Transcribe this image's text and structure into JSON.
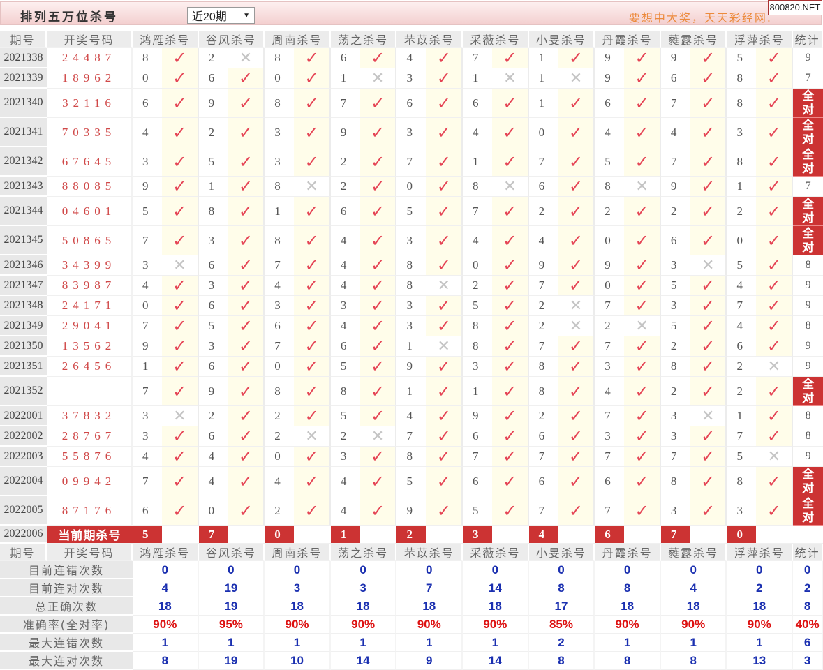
{
  "header": {
    "title": "排列五万位杀号",
    "period_select": "近20期",
    "slogan": "要想中大奖，天天彩经网.",
    "badge": "800820.NET"
  },
  "colors": {
    "accent": "#cc3333",
    "check": "#e54455",
    "cross": "#c4c4c4",
    "stat_blue": "#1a2fb0",
    "pct_red": "#dd1111"
  },
  "icons": {
    "correct": "check-icon",
    "wrong": "cross-icon"
  },
  "columns": {
    "period": "期号",
    "draw": "开奖号码",
    "experts": [
      "鸿雁杀号",
      "谷风杀号",
      "周南杀号",
      "荡之杀号",
      "芣苡杀号",
      "采薇杀号",
      "小旻杀号",
      "丹霞杀号",
      "蕤露杀号",
      "浮萍杀号"
    ],
    "stat": "统计"
  },
  "rows": [
    {
      "period": "2021338",
      "draw": "24487",
      "picks": [
        [
          "8",
          1
        ],
        [
          "2",
          0
        ],
        [
          "8",
          1
        ],
        [
          "6",
          1
        ],
        [
          "4",
          1
        ],
        [
          "7",
          1
        ],
        [
          "1",
          1
        ],
        [
          "9",
          1
        ],
        [
          "9",
          1
        ],
        [
          "5",
          1
        ]
      ],
      "stat": "9"
    },
    {
      "period": "2021339",
      "draw": "18962",
      "picks": [
        [
          "0",
          1
        ],
        [
          "6",
          1
        ],
        [
          "0",
          1
        ],
        [
          "1",
          0
        ],
        [
          "3",
          1
        ],
        [
          "1",
          0
        ],
        [
          "1",
          0
        ],
        [
          "9",
          1
        ],
        [
          "6",
          1
        ],
        [
          "8",
          1
        ]
      ],
      "stat": "7"
    },
    {
      "period": "2021340",
      "draw": "32116",
      "picks": [
        [
          "6",
          1
        ],
        [
          "9",
          1
        ],
        [
          "8",
          1
        ],
        [
          "7",
          1
        ],
        [
          "6",
          1
        ],
        [
          "6",
          1
        ],
        [
          "1",
          1
        ],
        [
          "6",
          1
        ],
        [
          "7",
          1
        ],
        [
          "8",
          1
        ]
      ],
      "stat": "全对"
    },
    {
      "period": "2021341",
      "draw": "70335",
      "picks": [
        [
          "4",
          1
        ],
        [
          "2",
          1
        ],
        [
          "3",
          1
        ],
        [
          "9",
          1
        ],
        [
          "3",
          1
        ],
        [
          "4",
          1
        ],
        [
          "0",
          1
        ],
        [
          "4",
          1
        ],
        [
          "4",
          1
        ],
        [
          "3",
          1
        ]
      ],
      "stat": "全对"
    },
    {
      "period": "2021342",
      "draw": "67645",
      "picks": [
        [
          "3",
          1
        ],
        [
          "5",
          1
        ],
        [
          "3",
          1
        ],
        [
          "2",
          1
        ],
        [
          "7",
          1
        ],
        [
          "1",
          1
        ],
        [
          "7",
          1
        ],
        [
          "5",
          1
        ],
        [
          "7",
          1
        ],
        [
          "8",
          1
        ]
      ],
      "stat": "全对"
    },
    {
      "period": "2021343",
      "draw": "88085",
      "picks": [
        [
          "9",
          1
        ],
        [
          "1",
          1
        ],
        [
          "8",
          0
        ],
        [
          "2",
          1
        ],
        [
          "0",
          1
        ],
        [
          "8",
          0
        ],
        [
          "6",
          1
        ],
        [
          "8",
          0
        ],
        [
          "9",
          1
        ],
        [
          "1",
          1
        ]
      ],
      "stat": "7"
    },
    {
      "period": "2021344",
      "draw": "04601",
      "picks": [
        [
          "5",
          1
        ],
        [
          "8",
          1
        ],
        [
          "1",
          1
        ],
        [
          "6",
          1
        ],
        [
          "5",
          1
        ],
        [
          "7",
          1
        ],
        [
          "2",
          1
        ],
        [
          "2",
          1
        ],
        [
          "2",
          1
        ],
        [
          "2",
          1
        ]
      ],
      "stat": "全对"
    },
    {
      "period": "2021345",
      "draw": "50865",
      "picks": [
        [
          "7",
          1
        ],
        [
          "3",
          1
        ],
        [
          "8",
          1
        ],
        [
          "4",
          1
        ],
        [
          "3",
          1
        ],
        [
          "4",
          1
        ],
        [
          "4",
          1
        ],
        [
          "0",
          1
        ],
        [
          "6",
          1
        ],
        [
          "0",
          1
        ]
      ],
      "stat": "全对"
    },
    {
      "period": "2021346",
      "draw": "34399",
      "picks": [
        [
          "3",
          0
        ],
        [
          "6",
          1
        ],
        [
          "7",
          1
        ],
        [
          "4",
          1
        ],
        [
          "8",
          1
        ],
        [
          "0",
          1
        ],
        [
          "9",
          1
        ],
        [
          "9",
          1
        ],
        [
          "3",
          0
        ],
        [
          "5",
          1
        ]
      ],
      "stat": "8"
    },
    {
      "period": "2021347",
      "draw": "83987",
      "picks": [
        [
          "4",
          1
        ],
        [
          "3",
          1
        ],
        [
          "4",
          1
        ],
        [
          "4",
          1
        ],
        [
          "8",
          0
        ],
        [
          "2",
          1
        ],
        [
          "7",
          1
        ],
        [
          "0",
          1
        ],
        [
          "5",
          1
        ],
        [
          "4",
          1
        ]
      ],
      "stat": "9"
    },
    {
      "period": "2021348",
      "draw": "24171",
      "picks": [
        [
          "0",
          1
        ],
        [
          "6",
          1
        ],
        [
          "3",
          1
        ],
        [
          "3",
          1
        ],
        [
          "3",
          1
        ],
        [
          "5",
          1
        ],
        [
          "2",
          0
        ],
        [
          "7",
          1
        ],
        [
          "3",
          1
        ],
        [
          "7",
          1
        ]
      ],
      "stat": "9"
    },
    {
      "period": "2021349",
      "draw": "29041",
      "picks": [
        [
          "7",
          1
        ],
        [
          "5",
          1
        ],
        [
          "6",
          1
        ],
        [
          "4",
          1
        ],
        [
          "3",
          1
        ],
        [
          "8",
          1
        ],
        [
          "2",
          0
        ],
        [
          "2",
          0
        ],
        [
          "5",
          1
        ],
        [
          "4",
          1
        ]
      ],
      "stat": "8"
    },
    {
      "period": "2021350",
      "draw": "13562",
      "picks": [
        [
          "9",
          1
        ],
        [
          "3",
          1
        ],
        [
          "7",
          1
        ],
        [
          "6",
          1
        ],
        [
          "1",
          0
        ],
        [
          "8",
          1
        ],
        [
          "7",
          1
        ],
        [
          "7",
          1
        ],
        [
          "2",
          1
        ],
        [
          "6",
          1
        ]
      ],
      "stat": "9"
    },
    {
      "period": "2021351",
      "draw": "26456",
      "picks": [
        [
          "1",
          1
        ],
        [
          "6",
          1
        ],
        [
          "0",
          1
        ],
        [
          "5",
          1
        ],
        [
          "9",
          1
        ],
        [
          "3",
          1
        ],
        [
          "8",
          1
        ],
        [
          "3",
          1
        ],
        [
          "8",
          1
        ],
        [
          "2",
          0
        ]
      ],
      "stat": "9"
    },
    {
      "period": "2021352",
      "draw": "",
      "picks": [
        [
          "7",
          1
        ],
        [
          "9",
          1
        ],
        [
          "8",
          1
        ],
        [
          "8",
          1
        ],
        [
          "1",
          1
        ],
        [
          "1",
          1
        ],
        [
          "8",
          1
        ],
        [
          "4",
          1
        ],
        [
          "2",
          1
        ],
        [
          "2",
          1
        ]
      ],
      "stat": "全对"
    },
    {
      "period": "2022001",
      "draw": "37832",
      "picks": [
        [
          "3",
          0
        ],
        [
          "2",
          1
        ],
        [
          "2",
          1
        ],
        [
          "5",
          1
        ],
        [
          "4",
          1
        ],
        [
          "9",
          1
        ],
        [
          "2",
          1
        ],
        [
          "7",
          1
        ],
        [
          "3",
          0
        ],
        [
          "1",
          1
        ]
      ],
      "stat": "8"
    },
    {
      "period": "2022002",
      "draw": "28767",
      "picks": [
        [
          "3",
          1
        ],
        [
          "6",
          1
        ],
        [
          "2",
          0
        ],
        [
          "2",
          0
        ],
        [
          "7",
          1
        ],
        [
          "6",
          1
        ],
        [
          "6",
          1
        ],
        [
          "3",
          1
        ],
        [
          "3",
          1
        ],
        [
          "7",
          1
        ]
      ],
      "stat": "8"
    },
    {
      "period": "2022003",
      "draw": "55876",
      "picks": [
        [
          "4",
          1
        ],
        [
          "4",
          1
        ],
        [
          "0",
          1
        ],
        [
          "3",
          1
        ],
        [
          "8",
          1
        ],
        [
          "7",
          1
        ],
        [
          "7",
          1
        ],
        [
          "7",
          1
        ],
        [
          "7",
          1
        ],
        [
          "5",
          0
        ]
      ],
      "stat": "9"
    },
    {
      "period": "2022004",
      "draw": "09942",
      "picks": [
        [
          "7",
          1
        ],
        [
          "4",
          1
        ],
        [
          "4",
          1
        ],
        [
          "4",
          1
        ],
        [
          "5",
          1
        ],
        [
          "6",
          1
        ],
        [
          "6",
          1
        ],
        [
          "6",
          1
        ],
        [
          "8",
          1
        ],
        [
          "8",
          1
        ]
      ],
      "stat": "全对"
    },
    {
      "period": "2022005",
      "draw": "87176",
      "picks": [
        [
          "6",
          1
        ],
        [
          "0",
          1
        ],
        [
          "2",
          1
        ],
        [
          "4",
          1
        ],
        [
          "9",
          1
        ],
        [
          "5",
          1
        ],
        [
          "7",
          1
        ],
        [
          "7",
          1
        ],
        [
          "3",
          1
        ],
        [
          "3",
          1
        ]
      ],
      "stat": "全对"
    }
  ],
  "current": {
    "period": "2022006",
    "label": "当前期杀号",
    "picks": [
      "5",
      "7",
      "0",
      "1",
      "2",
      "3",
      "4",
      "6",
      "7",
      "0"
    ]
  },
  "stats": [
    {
      "label": "目前连错次数",
      "values": [
        "0",
        "0",
        "0",
        "0",
        "0",
        "0",
        "0",
        "0",
        "0",
        "0"
      ],
      "total": "0"
    },
    {
      "label": "目前连对次数",
      "values": [
        "4",
        "19",
        "3",
        "3",
        "7",
        "14",
        "8",
        "8",
        "4",
        "2"
      ],
      "total": "2"
    },
    {
      "label": "总正确次数",
      "values": [
        "18",
        "19",
        "18",
        "18",
        "18",
        "18",
        "17",
        "18",
        "18",
        "18"
      ],
      "total": "8"
    },
    {
      "label": "准确率(全对率)",
      "values": [
        "90%",
        "95%",
        "90%",
        "90%",
        "90%",
        "90%",
        "85%",
        "90%",
        "90%",
        "90%"
      ],
      "total": "40%",
      "highlight": true
    },
    {
      "label": "最大连错次数",
      "values": [
        "1",
        "1",
        "1",
        "1",
        "1",
        "1",
        "2",
        "1",
        "1",
        "1"
      ],
      "total": "6"
    },
    {
      "label": "最大连对次数",
      "values": [
        "8",
        "19",
        "10",
        "14",
        "9",
        "14",
        "8",
        "8",
        "8",
        "13"
      ],
      "total": "3"
    }
  ]
}
